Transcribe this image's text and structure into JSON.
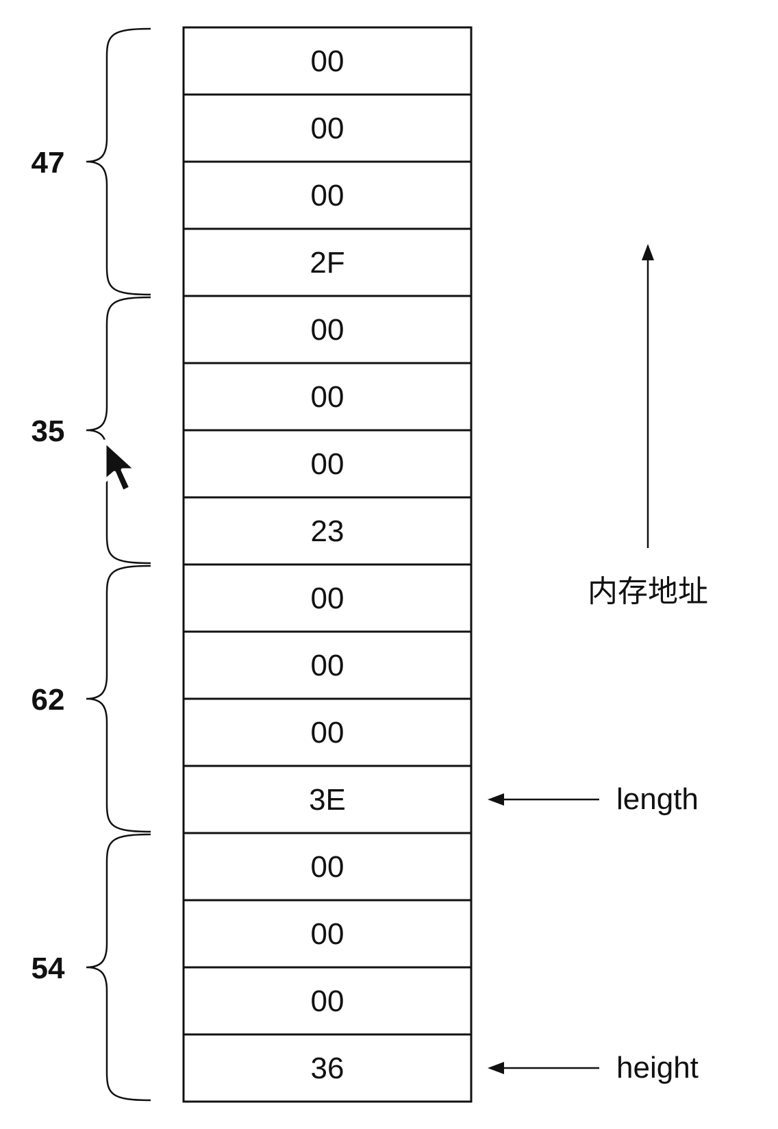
{
  "memory": {
    "cells": [
      "00",
      "00",
      "00",
      "2F",
      "00",
      "00",
      "00",
      "23",
      "00",
      "00",
      "00",
      "3E",
      "00",
      "00",
      "00",
      "36"
    ]
  },
  "groups": [
    {
      "label": "47",
      "start": 0,
      "end": 3
    },
    {
      "label": "35",
      "start": 4,
      "end": 7
    },
    {
      "label": "62",
      "start": 8,
      "end": 11
    },
    {
      "label": "54",
      "start": 12,
      "end": 15
    }
  ],
  "pointers": [
    {
      "label": "length",
      "cell": 11
    },
    {
      "label": "height",
      "cell": 15
    }
  ],
  "address_axis": {
    "label": "内存地址"
  },
  "icons": {
    "cursor": "mouse-pointer-icon"
  }
}
